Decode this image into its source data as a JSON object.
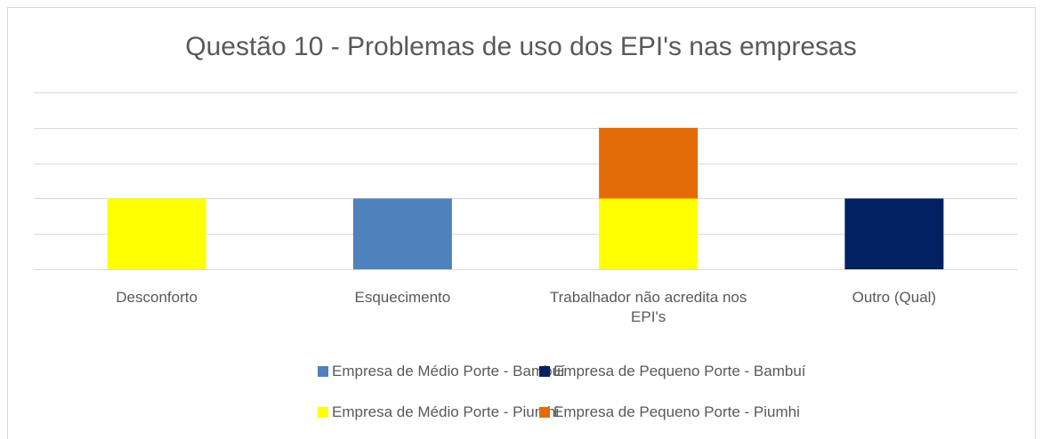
{
  "chart_data": {
    "type": "stacked_bar",
    "title": "Questão 10 - Problemas de uso dos EPI's nas empresas",
    "categories": [
      "Desconforto",
      "Esquecimento",
      "Trabalhador não acredita nos EPI's",
      "Outro (Qual)"
    ],
    "series": [
      {
        "name": "Empresa de Médio Porte - Bambuí",
        "color": "#4f81bd",
        "values": [
          0,
          2,
          0,
          0
        ]
      },
      {
        "name": "Empresa de Pequeno Porte - Bambuí",
        "color": "#002060",
        "values": [
          0,
          0,
          0,
          2
        ]
      },
      {
        "name": "Empresa de Médio Porte - Piumhi",
        "color": "#ffff00",
        "values": [
          2,
          0,
          2,
          0
        ]
      },
      {
        "name": "Empresa de Pequeno Porte - Piumhi",
        "color": "#e36c09",
        "values": [
          0,
          0,
          2,
          0
        ]
      }
    ],
    "ylim": [
      0,
      5
    ],
    "yticks": [
      0,
      1,
      2,
      3,
      4,
      5
    ],
    "grid": true
  }
}
